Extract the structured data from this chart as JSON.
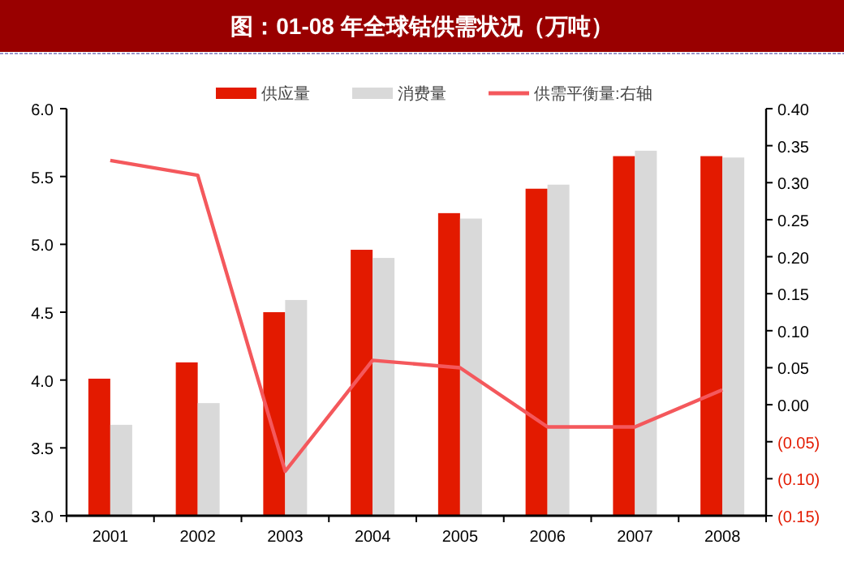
{
  "chart_data": {
    "type": "bar",
    "title": "图：01-08 年全球钴供需状况（万吨）",
    "categories": [
      "2001",
      "2002",
      "2003",
      "2004",
      "2005",
      "2006",
      "2007",
      "2008"
    ],
    "series": [
      {
        "name": "供应量",
        "color": "#e31a00",
        "values": [
          4.01,
          4.13,
          4.5,
          4.96,
          5.23,
          5.41,
          5.65,
          5.65
        ]
      },
      {
        "name": "消费量",
        "color": "#d9d9d9",
        "values": [
          3.67,
          3.83,
          4.59,
          4.9,
          5.19,
          5.44,
          5.69,
          5.64
        ]
      },
      {
        "name": "供需平衡量:右轴",
        "type": "line",
        "axis": "y2",
        "color": "#f4585c",
        "values": [
          0.33,
          0.31,
          -0.09,
          0.06,
          0.05,
          -0.03,
          -0.03,
          0.02
        ]
      }
    ],
    "ylim": [
      3.0,
      6.0
    ],
    "yticks": [
      {
        "value": 3,
        "label": "3.0"
      },
      3.5,
      {
        "value": 4,
        "label": "4.0"
      },
      4.5,
      {
        "value": 5,
        "label": "5.0"
      },
      5.5,
      {
        "value": 6,
        "label": "6.0"
      }
    ],
    "y2lim": [
      -0.15,
      0.4
    ],
    "y2ticks": [
      {
        "value": -0.15,
        "label": "(0.15)"
      },
      {
        "value": -0.1,
        "label": "(0.10)"
      },
      {
        "value": -0.05,
        "label": "(0.05)"
      },
      {
        "value": 0,
        "label": "0.00"
      },
      {
        "value": 0.05,
        "label": "0.05"
      },
      {
        "value": 0.1,
        "label": "0.10"
      },
      {
        "value": 0.15,
        "label": "0.15"
      },
      {
        "value": 0.2,
        "label": "0.20"
      },
      {
        "value": 0.25,
        "label": "0.25"
      },
      {
        "value": 0.3,
        "label": "0.30"
      },
      {
        "value": 0.35,
        "label": "0.35"
      },
      {
        "value": 0.4,
        "label": "0.40"
      }
    ],
    "grid": false,
    "legend": "top",
    "marker": "none",
    "line_style": "solid"
  }
}
